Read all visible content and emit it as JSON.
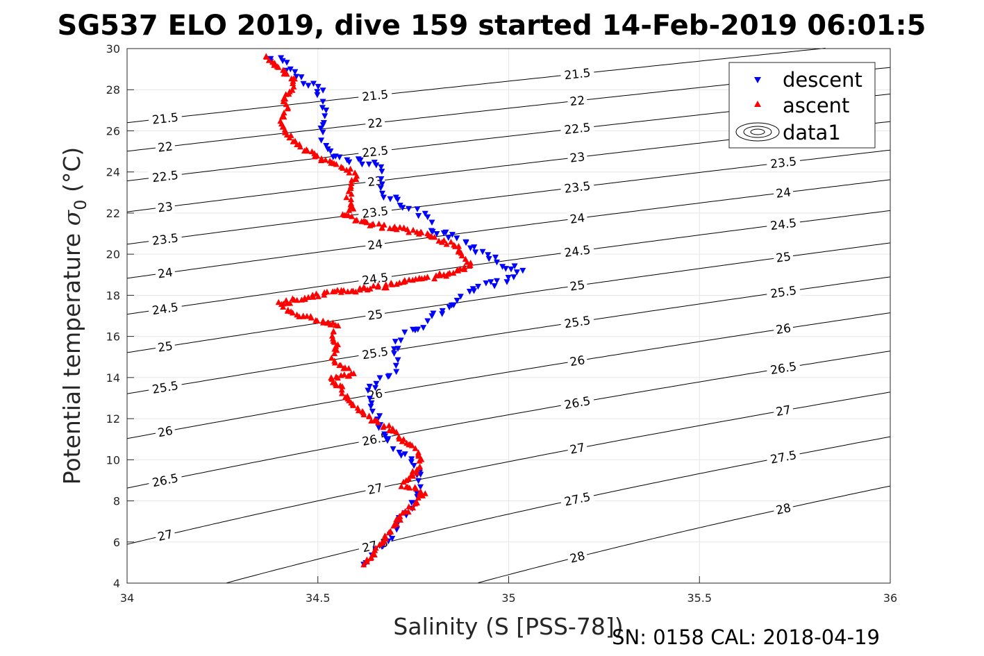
{
  "title": "SG537 ELO 2019, dive 159 started 14-Feb-2019 06:01:5",
  "footer": "SN: 0158  CAL: 2018-04-19",
  "chart_data": {
    "type": "scatter",
    "xlabel": "Salinity (S [PSS-78])",
    "ylabel_main": "Potential temperature ",
    "ylabel_symbol": "σ",
    "ylabel_sub": "0",
    "ylabel_unit": " (°C)",
    "xlim": [
      34,
      36
    ],
    "ylim": [
      4,
      30
    ],
    "xticks": [
      34,
      34.5,
      35,
      35.5,
      36
    ],
    "xtick_labels": [
      "34",
      "34.5",
      "35",
      "35.5",
      "36"
    ],
    "yticks": [
      4,
      6,
      8,
      10,
      12,
      14,
      16,
      18,
      20,
      22,
      24,
      26,
      28,
      30
    ],
    "ytick_labels": [
      "4",
      "6",
      "8",
      "10",
      "12",
      "14",
      "16",
      "18",
      "20",
      "22",
      "24",
      "26",
      "28",
      "30"
    ],
    "grid": true,
    "legend_position": "top-right",
    "legend": [
      "descent",
      "ascent",
      "data1"
    ],
    "colors": {
      "descent": "#0000ff",
      "ascent": "#ff0000",
      "contour": "#000000"
    },
    "density_contours": {
      "levels": [
        21.5,
        22,
        22.5,
        23,
        23.5,
        24,
        24.5,
        25,
        25.5,
        26,
        26.5,
        27,
        27.5,
        28
      ],
      "labels": [
        "21.5",
        "22",
        "22.5",
        "23",
        "23.5",
        "24",
        "24.5",
        "25",
        "25.5",
        "26",
        "26.5",
        "27",
        "27.5",
        "28"
      ]
    },
    "profile_path": [
      [
        34.37,
        29.5
      ],
      [
        34.4,
        29.4
      ],
      [
        34.44,
        28.6
      ],
      [
        34.42,
        27.6
      ],
      [
        34.4,
        26.1
      ],
      [
        34.47,
        25.0
      ],
      [
        34.58,
        23.8
      ],
      [
        34.59,
        22.9
      ],
      [
        34.57,
        21.9
      ],
      [
        34.64,
        21.4
      ],
      [
        34.75,
        21.2
      ],
      [
        34.86,
        20.3
      ],
      [
        34.9,
        19.5
      ],
      [
        34.84,
        19.1
      ],
      [
        34.77,
        18.8
      ],
      [
        34.62,
        18.3
      ],
      [
        34.49,
        18.0
      ],
      [
        34.43,
        17.7
      ],
      [
        34.4,
        17.6
      ],
      [
        34.54,
        16.5
      ],
      [
        34.56,
        15.6
      ],
      [
        34.55,
        14.6
      ],
      [
        34.59,
        14.2
      ],
      [
        34.53,
        14.0
      ],
      [
        34.59,
        13.1
      ],
      [
        34.62,
        12.3
      ],
      [
        34.71,
        11.4
      ],
      [
        34.77,
        9.8
      ],
      [
        34.74,
        9.0
      ],
      [
        34.78,
        8.5
      ],
      [
        34.68,
        6.2
      ],
      [
        34.64,
        5.2
      ],
      [
        34.62,
        4.9
      ]
    ],
    "series": [
      {
        "name": "descent",
        "marker": "triangle-down",
        "points": [
          [
            34.37,
            29.5
          ],
          [
            34.41,
            29.4
          ],
          [
            34.43,
            28.9
          ],
          [
            34.45,
            28.7
          ],
          [
            34.47,
            28.4
          ],
          [
            34.49,
            28.2
          ],
          [
            34.51,
            28.0
          ],
          [
            34.5,
            27.6
          ],
          [
            34.52,
            26.7
          ],
          [
            34.51,
            25.8
          ],
          [
            34.52,
            25.2
          ],
          [
            34.55,
            24.7
          ],
          [
            34.66,
            24.4
          ],
          [
            34.66,
            23.9
          ],
          [
            34.67,
            23.3
          ],
          [
            34.68,
            22.9
          ],
          [
            34.71,
            22.5
          ],
          [
            34.73,
            22.2
          ],
          [
            34.77,
            22.0
          ],
          [
            34.8,
            21.5
          ],
          [
            34.79,
            21.2
          ],
          [
            34.84,
            21.0
          ],
          [
            34.88,
            20.6
          ],
          [
            34.92,
            20.2
          ],
          [
            34.96,
            19.8
          ],
          [
            34.98,
            19.5
          ],
          [
            35.03,
            19.2
          ],
          [
            34.99,
            18.7
          ],
          [
            34.9,
            18.3
          ],
          [
            34.84,
            17.3
          ],
          [
            34.8,
            16.9
          ],
          [
            34.77,
            16.4
          ],
          [
            34.73,
            16.1
          ],
          [
            34.71,
            15.8
          ],
          [
            34.7,
            15.3
          ],
          [
            34.71,
            14.6
          ],
          [
            34.68,
            14.0
          ],
          [
            34.64,
            13.5
          ],
          [
            34.63,
            13.0
          ],
          [
            34.65,
            12.4
          ],
          [
            34.66,
            11.9
          ],
          [
            34.67,
            11.3
          ],
          [
            34.69,
            10.8
          ],
          [
            34.72,
            10.3
          ],
          [
            34.75,
            9.8
          ],
          [
            34.77,
            9.5
          ],
          [
            34.76,
            9.1
          ],
          [
            34.77,
            8.6
          ],
          [
            34.76,
            8.1
          ],
          [
            34.74,
            7.6
          ],
          [
            34.72,
            7.1
          ],
          [
            34.7,
            6.7
          ],
          [
            34.69,
            6.3
          ],
          [
            34.67,
            5.9
          ],
          [
            34.65,
            5.5
          ],
          [
            34.63,
            5.1
          ],
          [
            34.62,
            4.9
          ]
        ]
      },
      {
        "name": "ascent",
        "marker": "triangle-up",
        "points": [
          [
            34.36,
            29.6
          ],
          [
            34.39,
            29.2
          ],
          [
            34.41,
            28.8
          ],
          [
            34.44,
            28.5
          ],
          [
            34.43,
            28.0
          ],
          [
            34.41,
            27.6
          ],
          [
            34.42,
            27.0
          ],
          [
            34.4,
            26.4
          ],
          [
            34.42,
            25.8
          ],
          [
            34.46,
            25.1
          ],
          [
            34.49,
            24.9
          ],
          [
            34.52,
            24.5
          ],
          [
            34.56,
            24.3
          ],
          [
            34.6,
            23.9
          ],
          [
            34.59,
            23.3
          ],
          [
            34.58,
            22.8
          ],
          [
            34.59,
            22.3
          ],
          [
            34.57,
            21.9
          ],
          [
            34.61,
            21.6
          ],
          [
            34.65,
            21.4
          ],
          [
            34.7,
            21.3
          ],
          [
            34.75,
            21.1
          ],
          [
            34.81,
            20.8
          ],
          [
            34.86,
            20.4
          ],
          [
            34.88,
            19.9
          ],
          [
            34.9,
            19.5
          ],
          [
            34.87,
            19.2
          ],
          [
            34.83,
            19.0
          ],
          [
            34.77,
            18.8
          ],
          [
            34.69,
            18.5
          ],
          [
            34.62,
            18.3
          ],
          [
            34.55,
            18.2
          ],
          [
            34.49,
            18.0
          ],
          [
            34.45,
            17.8
          ],
          [
            34.4,
            17.6
          ],
          [
            34.43,
            17.2
          ],
          [
            34.46,
            17.0
          ],
          [
            34.55,
            16.6
          ],
          [
            34.54,
            16.1
          ],
          [
            34.55,
            15.6
          ],
          [
            34.54,
            15.0
          ],
          [
            34.56,
            14.6
          ],
          [
            34.59,
            14.2
          ],
          [
            34.53,
            14.0
          ],
          [
            34.56,
            13.5
          ],
          [
            34.58,
            13.0
          ],
          [
            34.6,
            12.5
          ],
          [
            34.63,
            12.1
          ],
          [
            34.67,
            11.7
          ],
          [
            34.7,
            11.4
          ],
          [
            34.72,
            11.0
          ],
          [
            34.75,
            10.6
          ],
          [
            34.77,
            10.0
          ],
          [
            34.77,
            9.6
          ],
          [
            34.74,
            9.2
          ],
          [
            34.72,
            8.8
          ],
          [
            34.75,
            8.6
          ],
          [
            34.78,
            8.4
          ],
          [
            34.75,
            7.8
          ],
          [
            34.72,
            7.3
          ],
          [
            34.7,
            6.8
          ],
          [
            34.68,
            6.3
          ],
          [
            34.66,
            5.8
          ],
          [
            34.64,
            5.3
          ],
          [
            34.62,
            4.9
          ]
        ]
      }
    ]
  }
}
